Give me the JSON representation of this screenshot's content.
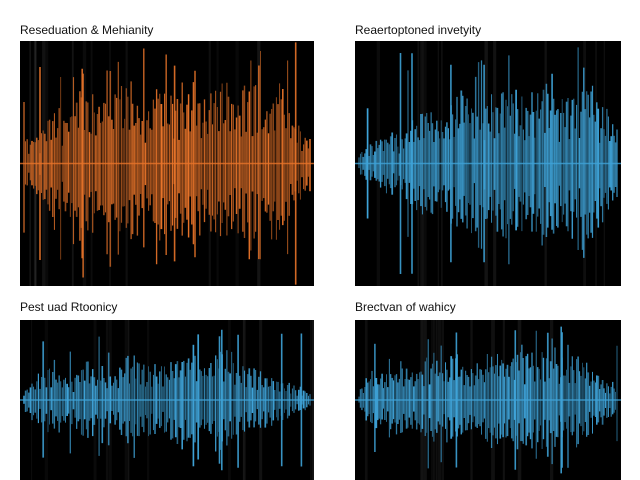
{
  "chart_data": [
    {
      "type": "line",
      "title": "Reseduation & Mehianity",
      "color": "#e8742a",
      "samples": 180,
      "envelope": [
        0.22,
        0.3,
        0.6,
        0.45,
        0.72,
        0.55,
        0.68,
        0.78,
        0.52,
        0.7,
        0.62,
        0.82,
        0.58,
        0.75,
        0.66,
        0.88,
        0.6,
        0.72,
        0.4,
        0.25
      ],
      "seed": 11
    },
    {
      "type": "line",
      "title": "Reaertoptoned invetyity",
      "color": "#3fa3d8",
      "samples": 180,
      "envelope": [
        0.1,
        0.18,
        0.3,
        0.25,
        0.42,
        0.55,
        0.38,
        0.6,
        0.72,
        0.5,
        0.66,
        0.8,
        0.58,
        0.7,
        0.85,
        0.62,
        0.76,
        0.9,
        0.55,
        0.35
      ],
      "seed": 23
    },
    {
      "type": "line",
      "title": "Pest uad Rtoonicy",
      "color": "#3fa3d8",
      "samples": 180,
      "envelope": [
        0.15,
        0.4,
        0.55,
        0.3,
        0.62,
        0.45,
        0.35,
        0.7,
        0.55,
        0.48,
        0.6,
        0.78,
        0.52,
        0.82,
        0.66,
        0.5,
        0.4,
        0.3,
        0.22,
        0.12
      ],
      "seed": 37
    },
    {
      "type": "line",
      "title": "Brectvan of wahicy",
      "color": "#3fa3d8",
      "samples": 180,
      "envelope": [
        0.12,
        0.45,
        0.35,
        0.58,
        0.4,
        0.62,
        0.5,
        0.7,
        0.45,
        0.55,
        0.72,
        0.6,
        0.8,
        0.65,
        0.75,
        0.58,
        0.68,
        0.5,
        0.38,
        0.2
      ],
      "seed": 51
    }
  ]
}
